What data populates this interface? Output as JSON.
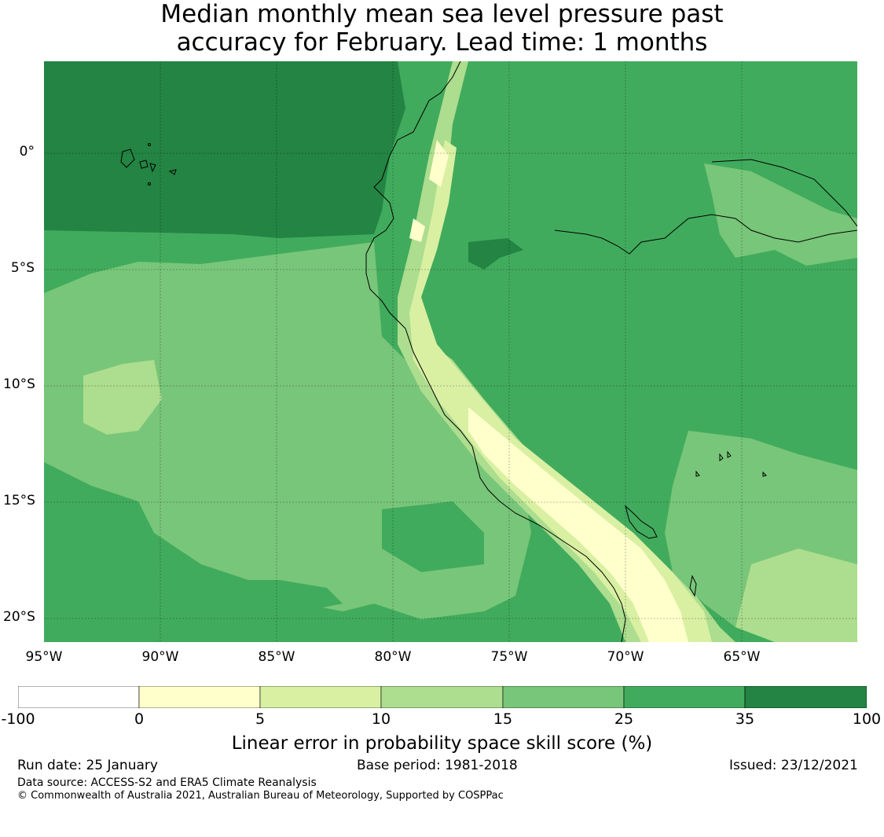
{
  "title_line1": "Median monthly mean sea level pressure past",
  "title_line2": "accuracy for February. Lead time: 1 months",
  "map": {
    "lat_labels": [
      "0°",
      "5°S",
      "10°S",
      "15°S",
      "20°S"
    ],
    "lon_labels": [
      "95°W",
      "90°W",
      "85°W",
      "80°W",
      "75°W",
      "70°W",
      "65°W"
    ],
    "colors": {
      "band_0_5": "#ffffcc",
      "band_5_10": "#d9f0a3",
      "band_10_15": "#addd8e",
      "band_15_25": "#78c679",
      "band_25_35": "#41ab5d",
      "band_35_100": "#238443"
    }
  },
  "colorbar": {
    "ticks": [
      "-100",
      "0",
      "5",
      "10",
      "15",
      "25",
      "35",
      "100"
    ],
    "colors": [
      "#ffffff",
      "#ffffcc",
      "#d9f0a3",
      "#addd8e",
      "#78c679",
      "#41ab5d",
      "#238443"
    ],
    "label": "Linear error in probability space skill score (%)"
  },
  "footer": {
    "run_date": "Run date: 25 January",
    "base_period": "Base period: 1981-2018",
    "issued": "Issued: 23/12/2021",
    "data_source": "Data source: ACCESS-S2 and ERA5 Climate Reanalysis",
    "copyright": "© Commonwealth of Australia 2021, Australian Bureau of Meteorology, Supported by COSPPac"
  }
}
